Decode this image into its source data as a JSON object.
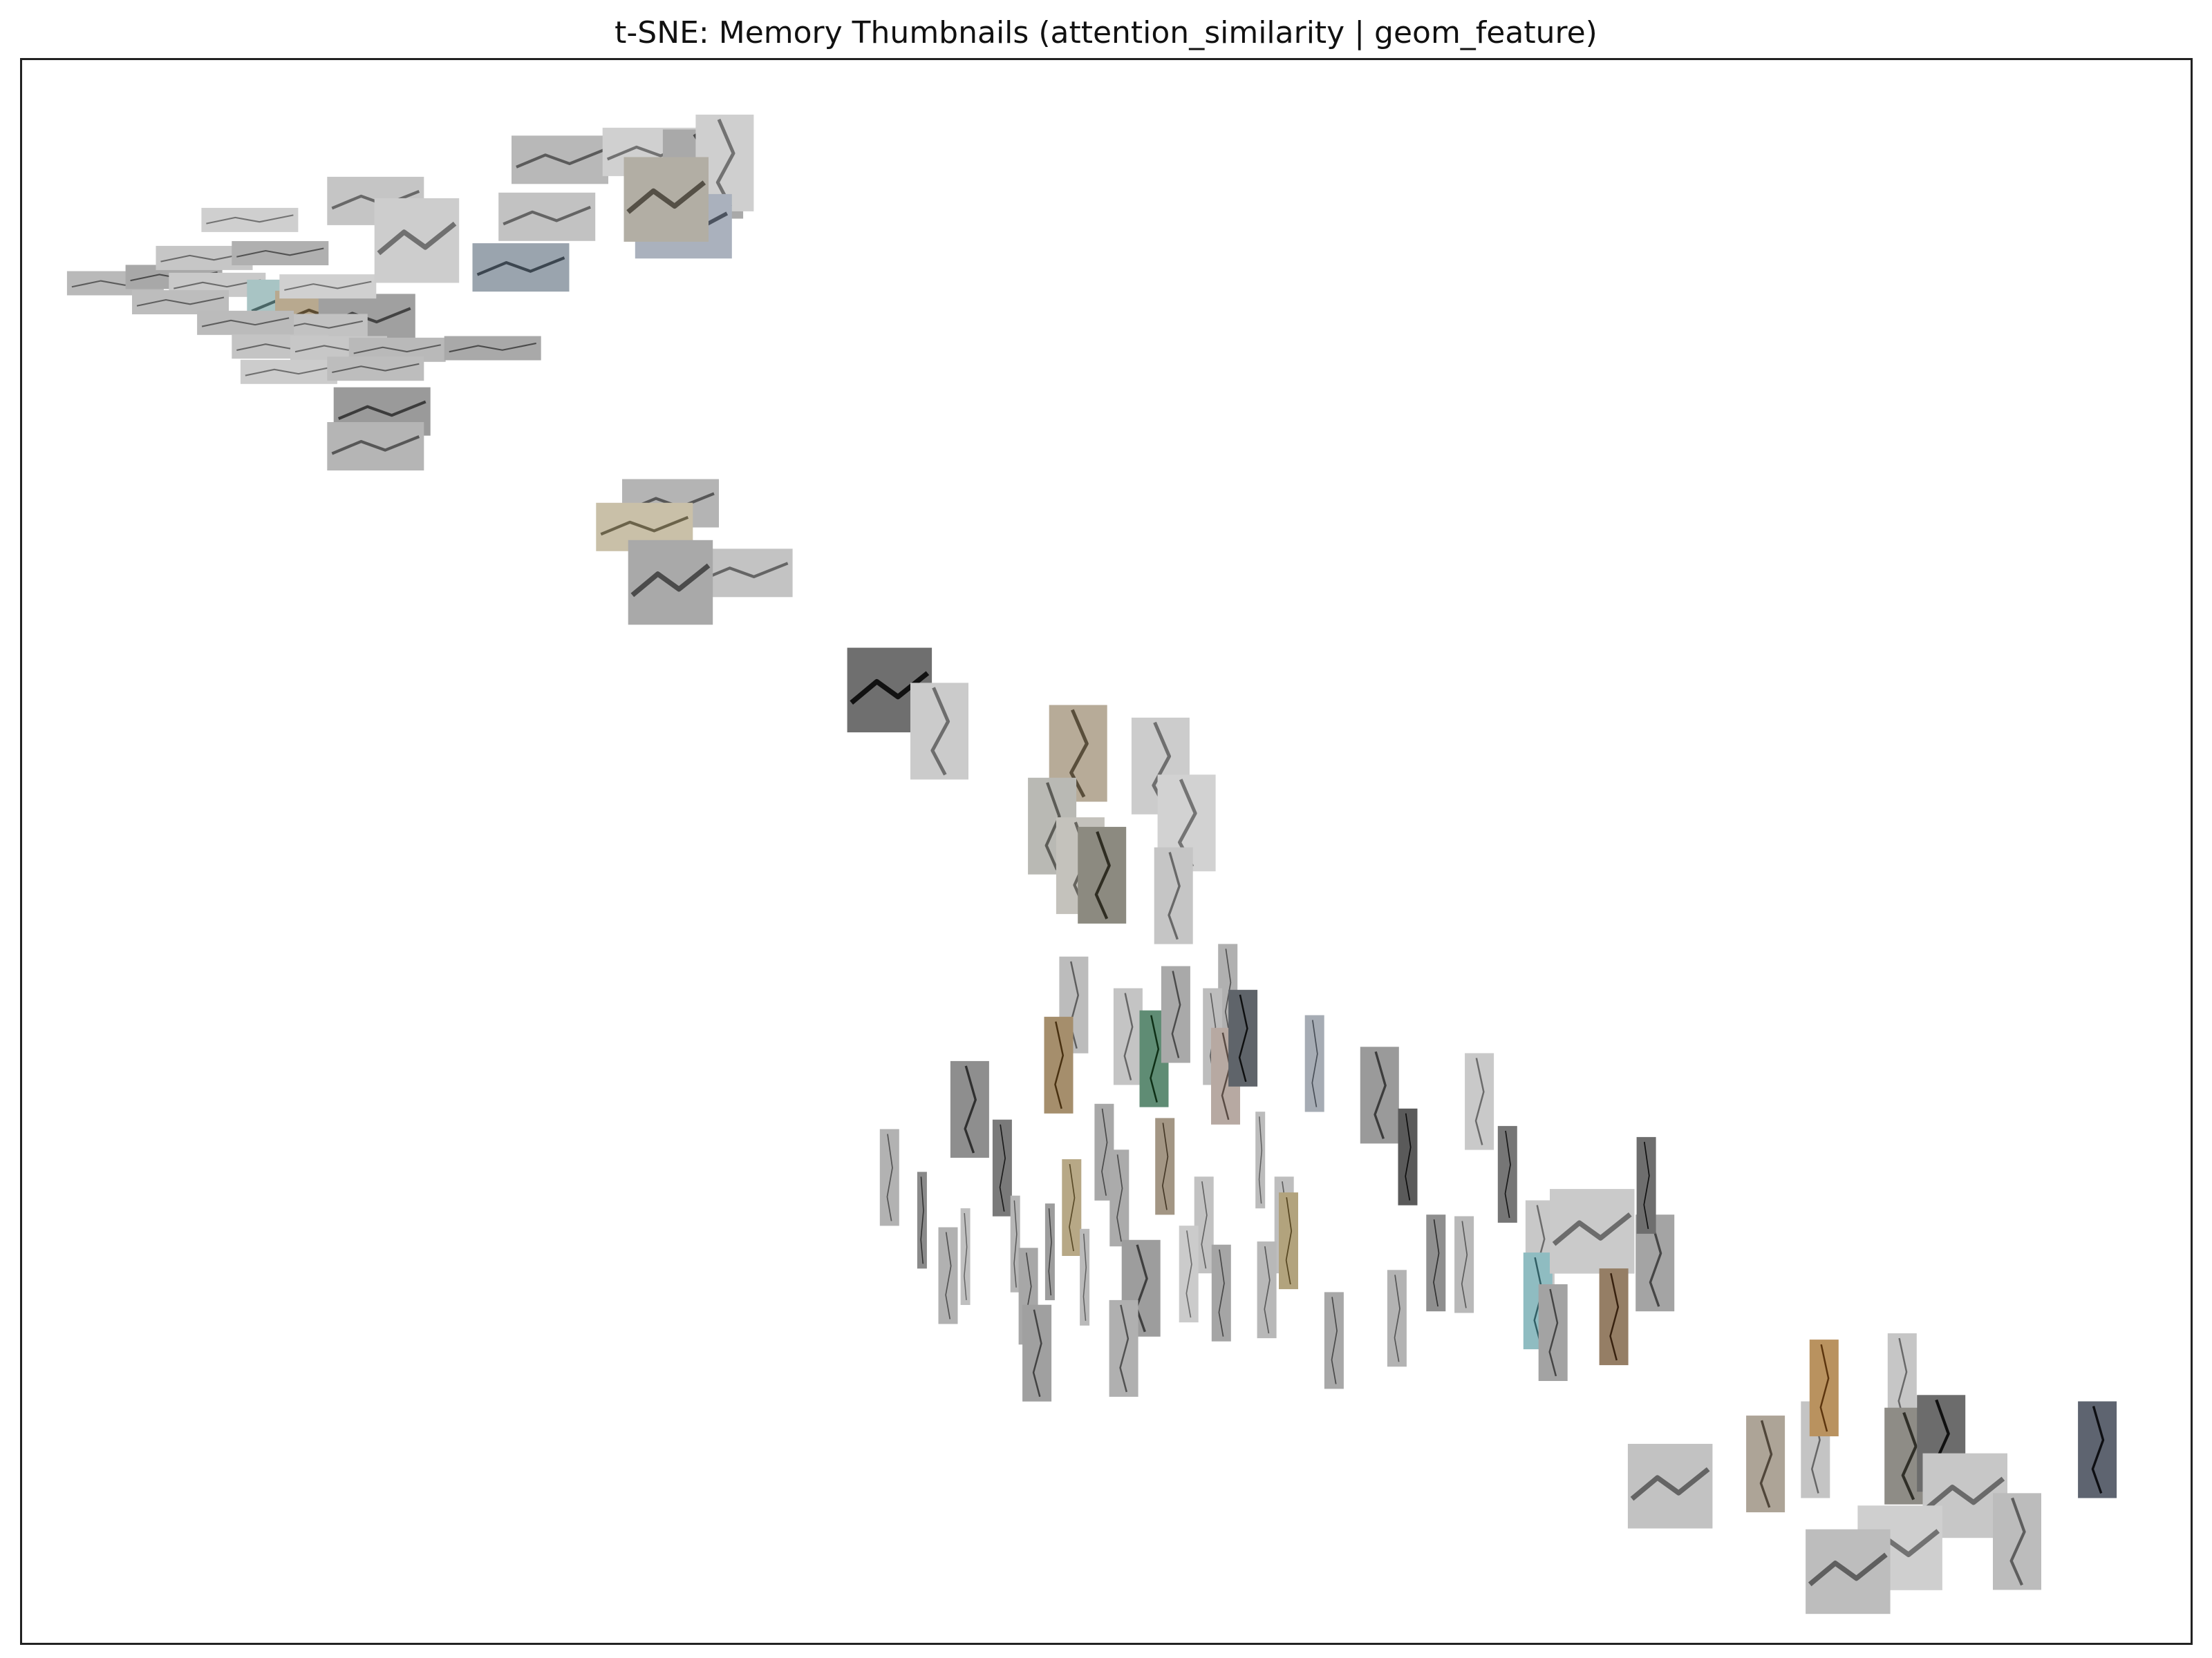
{
  "chart_data": {
    "type": "scatter",
    "title": "t-SNE: Memory Thumbnails (attention_similarity | geom_feature)",
    "xlabel": "",
    "ylabel": "",
    "ticks": "none",
    "grid": false,
    "legend": "none",
    "marker": "image-thumbnail",
    "xlim": [
      0,
      100
    ],
    "ylim": [
      0,
      100
    ],
    "points": [
      {
        "x": 4.3,
        "y": 85.9,
        "aspect": 4.0,
        "tone": "#b9b9b9"
      },
      {
        "x": 7.0,
        "y": 86.3,
        "aspect": 4.0,
        "tone": "#a8a8a8"
      },
      {
        "x": 8.4,
        "y": 87.5,
        "aspect": 4.0,
        "tone": "#c6c6c6"
      },
      {
        "x": 10.5,
        "y": 89.9,
        "aspect": 4.0,
        "tone": "#cfcfcf"
      },
      {
        "x": 9.0,
        "y": 85.8,
        "aspect": 4.0,
        "tone": "#c9c9c9"
      },
      {
        "x": 7.3,
        "y": 84.7,
        "aspect": 4.0,
        "tone": "#bdbdbd"
      },
      {
        "x": 11.9,
        "y": 87.8,
        "aspect": 4.0,
        "tone": "#b0b0b0"
      },
      {
        "x": 12.6,
        "y": 84.6,
        "aspect": 2.0,
        "tone": "#a8c4c4"
      },
      {
        "x": 13.9,
        "y": 83.9,
        "aspect": 2.0,
        "tone": "#b8a98f"
      },
      {
        "x": 15.9,
        "y": 83.7,
        "aspect": 2.0,
        "tone": "#a0a0a0"
      },
      {
        "x": 14.1,
        "y": 85.7,
        "aspect": 4.0,
        "tone": "#d0d0d0"
      },
      {
        "x": 13.7,
        "y": 83.2,
        "aspect": 4.0,
        "tone": "#c2c2c2"
      },
      {
        "x": 10.3,
        "y": 83.4,
        "aspect": 4.0,
        "tone": "#bbbbbb"
      },
      {
        "x": 11.9,
        "y": 81.9,
        "aspect": 4.0,
        "tone": "#c4c4c4"
      },
      {
        "x": 14.6,
        "y": 81.8,
        "aspect": 4.0,
        "tone": "#c7c7c7"
      },
      {
        "x": 17.3,
        "y": 81.7,
        "aspect": 4.0,
        "tone": "#b9b9b9"
      },
      {
        "x": 21.7,
        "y": 81.8,
        "aspect": 4.0,
        "tone": "#a9a9a9"
      },
      {
        "x": 12.3,
        "y": 80.3,
        "aspect": 4.0,
        "tone": "#cccccc"
      },
      {
        "x": 16.3,
        "y": 80.5,
        "aspect": 4.0,
        "tone": "#bdbdbd"
      },
      {
        "x": 16.6,
        "y": 77.8,
        "aspect": 2.0,
        "tone": "#9a9a9a"
      },
      {
        "x": 16.3,
        "y": 75.6,
        "aspect": 2.0,
        "tone": "#b5b5b5"
      },
      {
        "x": 16.3,
        "y": 91.1,
        "aspect": 2.0,
        "tone": "#c5c5c5"
      },
      {
        "x": 18.2,
        "y": 88.6,
        "aspect": 1.0,
        "tone": "#cdcdcd"
      },
      {
        "x": 23.0,
        "y": 86.9,
        "aspect": 2.0,
        "tone": "#9aa4ae"
      },
      {
        "x": 24.2,
        "y": 90.1,
        "aspect": 2.0,
        "tone": "#c2c2c2"
      },
      {
        "x": 24.8,
        "y": 93.7,
        "aspect": 2.0,
        "tone": "#b8b8b8"
      },
      {
        "x": 29.0,
        "y": 94.2,
        "aspect": 2.0,
        "tone": "#d0d0d0"
      },
      {
        "x": 31.4,
        "y": 92.8,
        "aspect": 0.9,
        "tone": "#a9a9a9"
      },
      {
        "x": 32.4,
        "y": 93.5,
        "aspect": 0.6,
        "tone": "#cfcfcf"
      },
      {
        "x": 30.5,
        "y": 89.5,
        "aspect": 1.5,
        "tone": "#aab1bd"
      },
      {
        "x": 29.7,
        "y": 91.2,
        "aspect": 1.0,
        "tone": "#b2aea4"
      },
      {
        "x": 29.9,
        "y": 72.0,
        "aspect": 2.0,
        "tone": "#b4b4b4"
      },
      {
        "x": 28.7,
        "y": 70.5,
        "aspect": 2.0,
        "tone": "#c9c0a8"
      },
      {
        "x": 33.3,
        "y": 67.6,
        "aspect": 2.0,
        "tone": "#c3c3c3"
      },
      {
        "x": 29.9,
        "y": 67.0,
        "aspect": 1.0,
        "tone": "#a9a9a9"
      },
      {
        "x": 40.0,
        "y": 60.2,
        "aspect": 1.0,
        "tone": "#6f6f6f"
      },
      {
        "x": 42.3,
        "y": 57.6,
        "aspect": 0.6,
        "tone": "#cbcbcb"
      },
      {
        "x": 48.7,
        "y": 56.2,
        "aspect": 0.6,
        "tone": "#b7ab98"
      },
      {
        "x": 52.5,
        "y": 55.4,
        "aspect": 0.6,
        "tone": "#cccccc"
      },
      {
        "x": 47.5,
        "y": 51.6,
        "aspect": 0.5,
        "tone": "#b9b9b4"
      },
      {
        "x": 48.8,
        "y": 49.1,
        "aspect": 0.5,
        "tone": "#c4c2bc"
      },
      {
        "x": 49.8,
        "y": 48.5,
        "aspect": 0.5,
        "tone": "#8c8a80"
      },
      {
        "x": 53.7,
        "y": 51.8,
        "aspect": 0.6,
        "tone": "#d2d2d2"
      },
      {
        "x": 53.1,
        "y": 47.2,
        "aspect": 0.4,
        "tone": "#c5c5c5"
      },
      {
        "x": 48.5,
        "y": 40.3,
        "aspect": 0.3,
        "tone": "#bcbcbc"
      },
      {
        "x": 43.7,
        "y": 33.7,
        "aspect": 0.4,
        "tone": "#8e8e8e"
      },
      {
        "x": 47.8,
        "y": 36.5,
        "aspect": 0.3,
        "tone": "#a58e6c"
      },
      {
        "x": 51.0,
        "y": 38.3,
        "aspect": 0.3,
        "tone": "#c4c4c4"
      },
      {
        "x": 52.2,
        "y": 36.9,
        "aspect": 0.3,
        "tone": "#5f8c74"
      },
      {
        "x": 53.2,
        "y": 39.7,
        "aspect": 0.3,
        "tone": "#a9a9a9"
      },
      {
        "x": 55.6,
        "y": 41.1,
        "aspect": 0.2,
        "tone": "#b0b0b0"
      },
      {
        "x": 54.9,
        "y": 38.3,
        "aspect": 0.2,
        "tone": "#bdbdbd"
      },
      {
        "x": 55.5,
        "y": 35.8,
        "aspect": 0.3,
        "tone": "#b7a9a2"
      },
      {
        "x": 56.3,
        "y": 38.2,
        "aspect": 0.3,
        "tone": "#5f646a"
      },
      {
        "x": 59.6,
        "y": 36.6,
        "aspect": 0.2,
        "tone": "#a6acb4"
      },
      {
        "x": 62.6,
        "y": 34.6,
        "aspect": 0.4,
        "tone": "#9a9a9a"
      },
      {
        "x": 67.2,
        "y": 34.2,
        "aspect": 0.3,
        "tone": "#c9c9c9"
      },
      {
        "x": 63.9,
        "y": 30.7,
        "aspect": 0.2,
        "tone": "#5a5a5a"
      },
      {
        "x": 68.5,
        "y": 29.6,
        "aspect": 0.2,
        "tone": "#767676"
      },
      {
        "x": 40.0,
        "y": 29.4,
        "aspect": 0.2,
        "tone": "#b2b2b2"
      },
      {
        "x": 45.2,
        "y": 30.0,
        "aspect": 0.2,
        "tone": "#7a7a7a"
      },
      {
        "x": 49.9,
        "y": 31.0,
        "aspect": 0.2,
        "tone": "#a8a8a8"
      },
      {
        "x": 52.7,
        "y": 30.1,
        "aspect": 0.2,
        "tone": "#a39684"
      },
      {
        "x": 57.1,
        "y": 30.5,
        "aspect": 0.1,
        "tone": "#bcbcbc"
      },
      {
        "x": 41.5,
        "y": 26.7,
        "aspect": 0.1,
        "tone": "#8a8a8a"
      },
      {
        "x": 43.5,
        "y": 24.4,
        "aspect": 0.1,
        "tone": "#c0c0c0"
      },
      {
        "x": 45.8,
        "y": 25.2,
        "aspect": 0.1,
        "tone": "#b6b6b6"
      },
      {
        "x": 47.4,
        "y": 24.7,
        "aspect": 0.1,
        "tone": "#9d9d9d"
      },
      {
        "x": 48.4,
        "y": 27.5,
        "aspect": 0.2,
        "tone": "#b7a886"
      },
      {
        "x": 50.6,
        "y": 28.1,
        "aspect": 0.2,
        "tone": "#ababab"
      },
      {
        "x": 54.5,
        "y": 26.4,
        "aspect": 0.2,
        "tone": "#c2c2c2"
      },
      {
        "x": 58.2,
        "y": 26.4,
        "aspect": 0.2,
        "tone": "#bebebe"
      },
      {
        "x": 58.4,
        "y": 25.4,
        "aspect": 0.2,
        "tone": "#b2a37d"
      },
      {
        "x": 42.7,
        "y": 23.2,
        "aspect": 0.2,
        "tone": "#b1b1b1"
      },
      {
        "x": 46.4,
        "y": 21.9,
        "aspect": 0.2,
        "tone": "#a7a7a7"
      },
      {
        "x": 49.0,
        "y": 23.1,
        "aspect": 0.1,
        "tone": "#bababa"
      },
      {
        "x": 51.6,
        "y": 22.4,
        "aspect": 0.4,
        "tone": "#9d9d9d"
      },
      {
        "x": 53.8,
        "y": 23.3,
        "aspect": 0.2,
        "tone": "#cbcbcb"
      },
      {
        "x": 55.3,
        "y": 22.1,
        "aspect": 0.2,
        "tone": "#a5a5a5"
      },
      {
        "x": 57.4,
        "y": 22.3,
        "aspect": 0.2,
        "tone": "#b8b8b8"
      },
      {
        "x": 46.8,
        "y": 18.3,
        "aspect": 0.3,
        "tone": "#a0a0a0"
      },
      {
        "x": 50.8,
        "y": 18.6,
        "aspect": 0.3,
        "tone": "#b0b0b0"
      },
      {
        "x": 60.5,
        "y": 19.1,
        "aspect": 0.2,
        "tone": "#a8a8a8"
      },
      {
        "x": 63.4,
        "y": 20.5,
        "aspect": 0.2,
        "tone": "#b3b3b3"
      },
      {
        "x": 65.2,
        "y": 24.0,
        "aspect": 0.2,
        "tone": "#8f8f8f"
      },
      {
        "x": 66.5,
        "y": 23.9,
        "aspect": 0.2,
        "tone": "#b9b9b9"
      },
      {
        "x": 70.0,
        "y": 24.9,
        "aspect": 0.3,
        "tone": "#c8c8c8"
      },
      {
        "x": 69.9,
        "y": 21.6,
        "aspect": 0.3,
        "tone": "#8fbcc1"
      },
      {
        "x": 70.6,
        "y": 19.6,
        "aspect": 0.3,
        "tone": "#a3a3a3"
      },
      {
        "x": 72.4,
        "y": 26.0,
        "aspect": 1.0,
        "tone": "#cacaca"
      },
      {
        "x": 73.4,
        "y": 20.6,
        "aspect": 0.3,
        "tone": "#957e65"
      },
      {
        "x": 75.3,
        "y": 24.0,
        "aspect": 0.4,
        "tone": "#a4a4a4"
      },
      {
        "x": 74.9,
        "y": 28.9,
        "aspect": 0.2,
        "tone": "#6e6e6e"
      },
      {
        "x": 76.0,
        "y": 9.9,
        "aspect": 1.0,
        "tone": "#c2c2c2"
      },
      {
        "x": 80.4,
        "y": 11.3,
        "aspect": 0.4,
        "tone": "#ada497"
      },
      {
        "x": 82.7,
        "y": 12.2,
        "aspect": 0.3,
        "tone": "#c4c4c4"
      },
      {
        "x": 83.1,
        "y": 16.1,
        "aspect": 0.3,
        "tone": "#b9925f"
      },
      {
        "x": 86.7,
        "y": 16.5,
        "aspect": 0.3,
        "tone": "#c6c6c6"
      },
      {
        "x": 87.0,
        "y": 11.8,
        "aspect": 0.5,
        "tone": "#8e8c86"
      },
      {
        "x": 88.5,
        "y": 12.6,
        "aspect": 0.5,
        "tone": "#6c6c6c"
      },
      {
        "x": 89.6,
        "y": 9.3,
        "aspect": 1.0,
        "tone": "#c7c7c7"
      },
      {
        "x": 92.0,
        "y": 6.4,
        "aspect": 0.5,
        "tone": "#bcbcbc"
      },
      {
        "x": 86.6,
        "y": 6.0,
        "aspect": 1.0,
        "tone": "#cfcfcf"
      },
      {
        "x": 84.2,
        "y": 4.5,
        "aspect": 1.0,
        "tone": "#bdbdbd"
      },
      {
        "x": 95.7,
        "y": 12.2,
        "aspect": 0.4,
        "tone": "#5e6470"
      }
    ]
  }
}
